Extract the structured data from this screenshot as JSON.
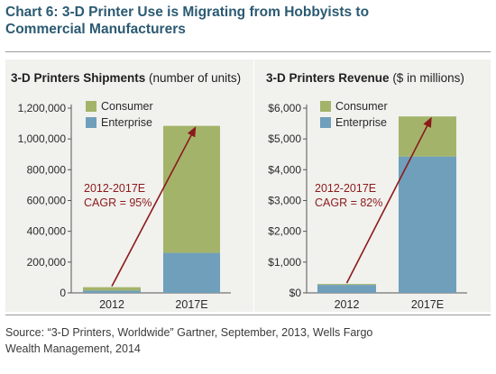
{
  "title": {
    "line1": "Chart 6: 3-D Printer Use is Migrating from Hobbyists to",
    "line2": "Commercial Manufacturers"
  },
  "source": {
    "line1": "Source: “3-D Printers, Worldwide” Gartner, September, 2013, Wells Fargo",
    "line2": "Wealth Management, 2014"
  },
  "colors": {
    "consumer": "#a3b46a",
    "enterprise": "#6f9fbb",
    "arrow": "#8b1a1a",
    "title": "#2b5a72"
  },
  "chart_data": [
    {
      "type": "bar",
      "stacked": true,
      "title_bold": "3-D Printers Shipments",
      "title_rest": " (number of units)",
      "categories": [
        "2012",
        "2017E"
      ],
      "series": [
        {
          "name": "Enterprise",
          "values": [
            15000,
            260000
          ]
        },
        {
          "name": "Consumer",
          "values": [
            22000,
            825000
          ]
        }
      ],
      "legend_order": [
        "Consumer",
        "Enterprise"
      ],
      "ylim": [
        0,
        1200000
      ],
      "yticks": [
        0,
        200000,
        400000,
        600000,
        800000,
        1000000,
        1200000
      ],
      "ytick_labels": [
        "0",
        "200,000",
        "400,000",
        "600,000",
        "800,000",
        "1,000,000",
        "1,200,000"
      ],
      "annotation": {
        "line1": "2012-2017E",
        "line2": "CAGR = 95%"
      }
    },
    {
      "type": "bar",
      "stacked": true,
      "title_bold": "3-D Printers Revenue",
      "title_rest": " ($ in millions)",
      "categories": [
        "2012",
        "2017E"
      ],
      "series": [
        {
          "name": "Enterprise",
          "values": [
            260,
            4430
          ]
        },
        {
          "name": "Consumer",
          "values": [
            30,
            1300
          ]
        }
      ],
      "legend_order": [
        "Consumer",
        "Enterprise"
      ],
      "ylim": [
        0,
        6000
      ],
      "yticks": [
        0,
        1000,
        2000,
        3000,
        4000,
        5000,
        6000
      ],
      "ytick_labels": [
        "$0",
        "$1,000",
        "$2,000",
        "$3,000",
        "$4,000",
        "$5,000",
        "$6,000"
      ],
      "annotation": {
        "line1": "2012-2017E",
        "line2": "CAGR = 82%"
      }
    }
  ]
}
